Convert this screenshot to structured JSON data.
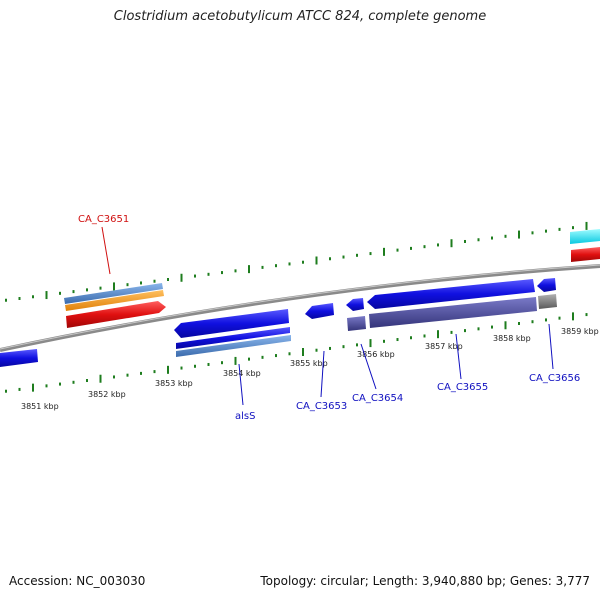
{
  "title": "Clostridium acetobutylicum ATCC 824, complete genome",
  "footer": {
    "accession": "Accession: NC_003030",
    "summary": "Topology: circular; Length: 3,940,880 bp; Genes: 3,777"
  },
  "colors": {
    "backbone": "#8a8a8a",
    "tick": "#1e7d1e",
    "gene_blue": "#1010e0",
    "gene_red": "#e01010",
    "gene_orange": "#f09010",
    "gene_steel": "#4a82c8",
    "gene_cyan": "#10e0f0",
    "gene_purple": "#4a4a9a",
    "gene_gray": "#7a7a7a",
    "label_red": "#d01010",
    "label_blue": "#1010c0"
  },
  "ticks": {
    "upper": [
      "3851 kbp",
      "3852 kbp",
      "3853 kbp",
      "3854 kbp",
      "3855 kbp",
      "3856 kbp",
      "3857 kbp",
      "3858 kbp",
      "3859 kbp"
    ]
  },
  "genes": [
    {
      "label": "CA_C3651",
      "color": "label_red"
    },
    {
      "label": "alsS",
      "color": "label_blue"
    },
    {
      "label": "CA_C3653",
      "color": "label_blue"
    },
    {
      "label": "CA_C3654",
      "color": "label_blue"
    },
    {
      "label": "CA_C3655",
      "color": "label_blue"
    },
    {
      "label": "CA_C3656",
      "color": "label_blue"
    }
  ]
}
